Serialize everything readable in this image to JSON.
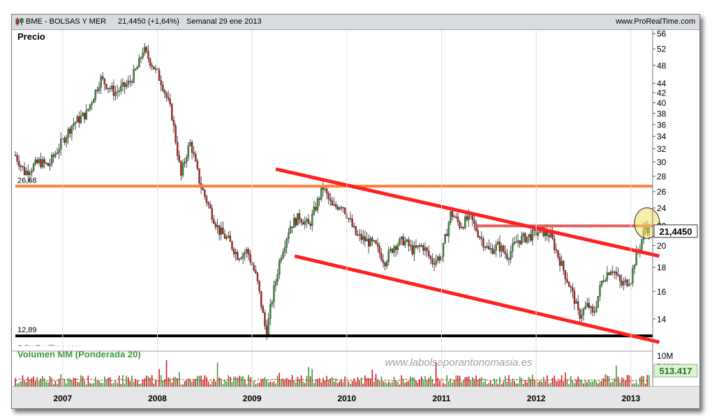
{
  "header": {
    "instrument": "BME - BOLSAS Y MER",
    "price_change": "21,4450 (+1,64%)",
    "period": "Semanal  29 ene 2013",
    "site": "www.ProRealTime.com"
  },
  "colors": {
    "up": "#3a9a3a",
    "down": "#cc2020",
    "resistance": "#ff7f3a",
    "channel": "#ff2020",
    "support": "#000000",
    "highlight": "#f0e060",
    "price_box": "#ffffff",
    "volume_box": "#dff2d6"
  },
  "chart_data": [
    {
      "type": "candlestick",
      "title": "Precio",
      "y_scale": "log",
      "ylim": [
        12.3,
        57
      ],
      "y_ticks": [
        14,
        16,
        18,
        20,
        22,
        24,
        26,
        28,
        30,
        32,
        34,
        36,
        38,
        40,
        42,
        44,
        48,
        52,
        56
      ],
      "x_ticks": [
        "2007",
        "2008",
        "2009",
        "2010",
        "2011",
        "2012",
        "2013"
      ],
      "xlim": [
        2006.5,
        2013.23
      ],
      "last_price": "21,4450",
      "levels": [
        {
          "label": "26,68",
          "value": 26.68,
          "style": "resistance"
        },
        {
          "label": "12,89",
          "value": 12.89,
          "style": "support"
        },
        {
          "label": "",
          "value": 22.0,
          "style": "resistance-2012"
        }
      ],
      "channel": {
        "upper": [
          [
            2009.25,
            29.0
          ],
          [
            2013.3,
            19.0
          ]
        ],
        "lower": [
          [
            2009.45,
            19.0
          ],
          [
            2013.3,
            12.5
          ]
        ]
      },
      "price_path": [
        [
          2006.5,
          31
        ],
        [
          2006.6,
          28.5
        ],
        [
          2006.75,
          30
        ],
        [
          2006.85,
          29.5
        ],
        [
          2006.95,
          32
        ],
        [
          2007.1,
          36
        ],
        [
          2007.25,
          38
        ],
        [
          2007.4,
          45
        ],
        [
          2007.55,
          42
        ],
        [
          2007.7,
          44
        ],
        [
          2007.8,
          48
        ],
        [
          2007.85,
          52
        ],
        [
          2007.95,
          48
        ],
        [
          2008.05,
          44
        ],
        [
          2008.15,
          38
        ],
        [
          2008.25,
          28
        ],
        [
          2008.3,
          31
        ],
        [
          2008.35,
          33
        ],
        [
          2008.45,
          27
        ],
        [
          2008.55,
          24
        ],
        [
          2008.65,
          21.5
        ],
        [
          2008.75,
          20.5
        ],
        [
          2008.85,
          19
        ],
        [
          2008.95,
          19.5
        ],
        [
          2009.05,
          17
        ],
        [
          2009.15,
          13
        ],
        [
          2009.2,
          15
        ],
        [
          2009.3,
          19
        ],
        [
          2009.4,
          22
        ],
        [
          2009.5,
          23
        ],
        [
          2009.6,
          22
        ],
        [
          2009.7,
          25
        ],
        [
          2009.75,
          26.5
        ],
        [
          2009.85,
          24
        ],
        [
          2009.95,
          24.5
        ],
        [
          2010.1,
          21
        ],
        [
          2010.3,
          20
        ],
        [
          2010.4,
          18.5
        ],
        [
          2010.5,
          20
        ],
        [
          2010.6,
          20.5
        ],
        [
          2010.7,
          19.5
        ],
        [
          2010.8,
          20
        ],
        [
          2010.9,
          18.5
        ],
        [
          2011.0,
          19
        ],
        [
          2011.1,
          23.5
        ],
        [
          2011.2,
          22
        ],
        [
          2011.3,
          23
        ],
        [
          2011.4,
          21
        ],
        [
          2011.5,
          19.5
        ],
        [
          2011.6,
          20
        ],
        [
          2011.7,
          19
        ],
        [
          2011.8,
          20.5
        ],
        [
          2011.95,
          21
        ],
        [
          2012.05,
          21.5
        ],
        [
          2012.15,
          21
        ],
        [
          2012.3,
          17.5
        ],
        [
          2012.4,
          15.5
        ],
        [
          2012.45,
          14.2
        ],
        [
          2012.55,
          15
        ],
        [
          2012.6,
          14.2
        ],
        [
          2012.7,
          17
        ],
        [
          2012.8,
          18
        ],
        [
          2012.9,
          16.5
        ],
        [
          2013.0,
          17
        ],
        [
          2013.05,
          19
        ],
        [
          2013.1,
          20
        ],
        [
          2013.15,
          22
        ],
        [
          2013.2,
          21.45
        ]
      ]
    },
    {
      "type": "bar",
      "title": "Volumen MM (Ponderada 20)",
      "y_ticks": [
        "10M",
        "5.000K"
      ],
      "last_value": "513.417",
      "watermark": "www.labolsaporantonomasia.es",
      "copyright": "© ProRealTime.com"
    }
  ]
}
